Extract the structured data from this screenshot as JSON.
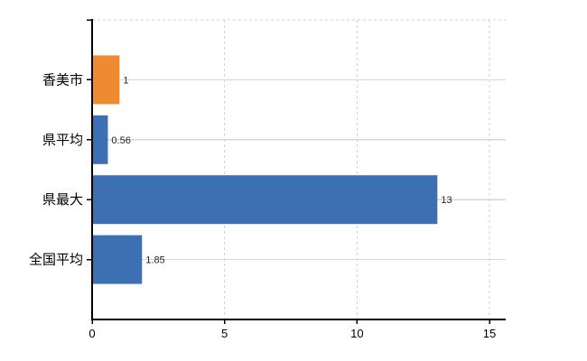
{
  "chart_data": {
    "type": "bar",
    "orientation": "horizontal",
    "title": "",
    "xlabel": "",
    "ylabel": "",
    "categories": [
      "香美市",
      "県平均",
      "県最大",
      "全国平均"
    ],
    "values": [
      1,
      0.56,
      13,
      1.85
    ],
    "value_labels": [
      "1",
      "0.56",
      "13",
      "1.85"
    ],
    "bar_colors": [
      "#EE8A30",
      "#3D6FB3",
      "#3D6FB3",
      "#3D6FB3"
    ],
    "x_ticks": [
      0,
      5,
      10,
      15
    ],
    "x_tick_labels": [
      "0",
      "5",
      "10",
      "15"
    ],
    "xlim": [
      0,
      15.6
    ],
    "grid": {
      "vertical": "dashed",
      "horizontal": "solid",
      "top_border": "dashed"
    },
    "legend": "none",
    "colors": {
      "axis": "#000000",
      "gridline_solid": "#d7d7d7",
      "gridline_dashed": "#d2d2d2",
      "category_label": "#000000",
      "tick_label": "#000000",
      "value_label": "#262626",
      "background": "#ffffff"
    }
  }
}
